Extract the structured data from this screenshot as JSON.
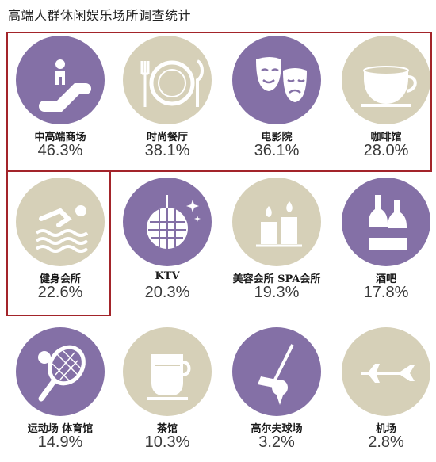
{
  "title": "高端人群休闲娱乐场所调查统计",
  "colors": {
    "purple": "#8470a6",
    "tan": "#d6d0b8",
    "highlight": "#a3242a"
  },
  "chart_data": {
    "type": "table",
    "title": "高端人群休闲娱乐场所调查统计",
    "categories": [
      "中高端商场",
      "时尚餐厅",
      "电影院",
      "咖啡馆",
      "健身会所",
      "KTV",
      "美容会所 SPA会所",
      "酒吧",
      "运动场 体育馆",
      "茶馆",
      "高尔夫球场",
      "机场"
    ],
    "values": [
      46.3,
      38.1,
      36.1,
      28.0,
      22.6,
      20.3,
      19.3,
      17.8,
      14.9,
      10.3,
      3.2,
      2.8
    ],
    "unit": "%",
    "items": [
      {
        "label": "中高端商场",
        "value": "46.3%",
        "icon": "escalator-icon",
        "color": "purple"
      },
      {
        "label": "时尚餐厅",
        "value": "38.1%",
        "icon": "plate-cutlery-icon",
        "color": "tan"
      },
      {
        "label": "电影院",
        "value": "36.1%",
        "icon": "theater-masks-icon",
        "color": "purple"
      },
      {
        "label": "咖啡馆",
        "value": "28.0%",
        "icon": "coffee-cup-icon",
        "color": "tan"
      },
      {
        "label": "健身会所",
        "value": "22.6%",
        "icon": "swimmer-icon",
        "color": "tan"
      },
      {
        "label": "KTV",
        "value": "20.3%",
        "icon": "disco-ball-icon",
        "color": "purple"
      },
      {
        "label": "美容会所 SPA会所",
        "value": "19.3%",
        "icon": "candles-icon",
        "color": "tan"
      },
      {
        "label": "酒吧",
        "value": "17.8%",
        "icon": "bottles-icon",
        "color": "purple"
      },
      {
        "label": "运动场 体育馆",
        "value": "14.9%",
        "icon": "tennis-racket-icon",
        "color": "purple"
      },
      {
        "label": "茶馆",
        "value": "10.3%",
        "icon": "tea-cup-icon",
        "color": "tan"
      },
      {
        "label": "高尔夫球场",
        "value": "3.2%",
        "icon": "golf-club-icon",
        "color": "purple"
      },
      {
        "label": "机场",
        "value": "2.8%",
        "icon": "airplane-icon",
        "color": "tan"
      }
    ]
  }
}
